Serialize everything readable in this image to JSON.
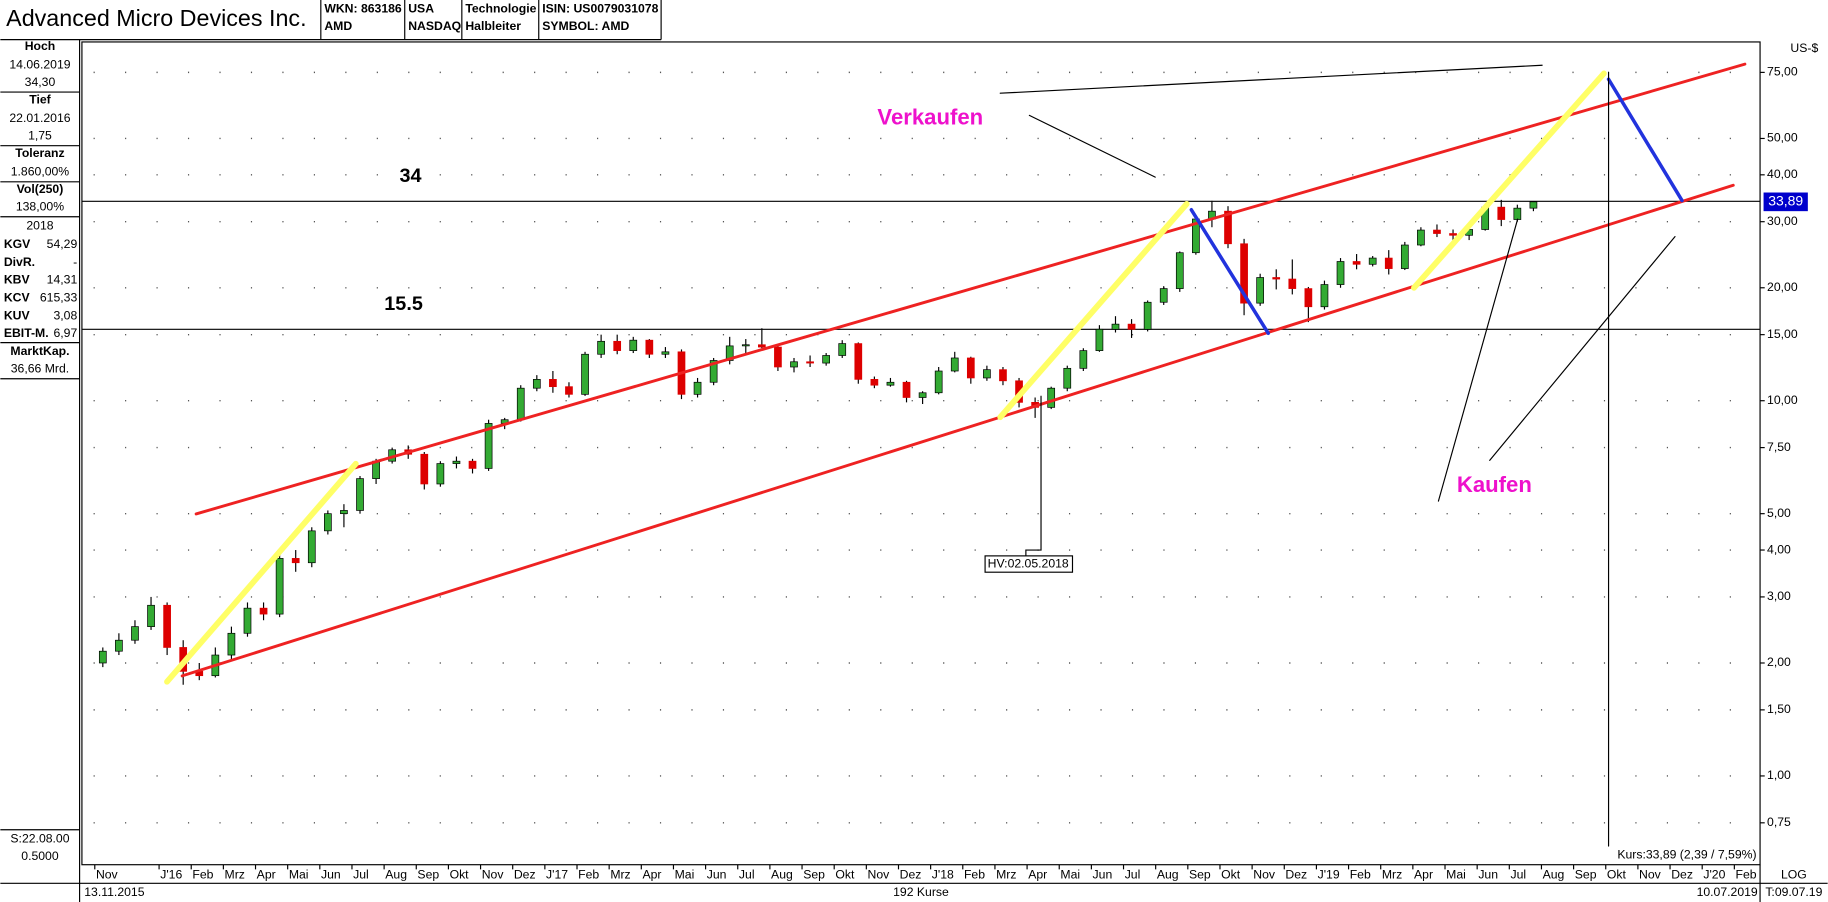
{
  "header": {
    "title": "Advanced Micro Devices Inc.",
    "fields": [
      [
        "WKN: 863186",
        "AMD"
      ],
      [
        "USA",
        "NASDAQ"
      ],
      [
        "Technologie",
        "Halbleiter"
      ],
      [
        "ISIN: US0079031078",
        "SYMBOL: AMD"
      ]
    ]
  },
  "sidebar": {
    "high_label": "Hoch",
    "high_date": "14.06.2019",
    "high_value": "34,30",
    "low_label": "Tief",
    "low_date": "22.01.2016",
    "low_value": "1,75",
    "tol_label": "Toleranz",
    "tol_value": "1.860,00%",
    "vol_label": "Vol(250)",
    "vol_value": "138,00%",
    "year": "2018",
    "ratios": [
      [
        "KGV",
        "54,29"
      ],
      [
        "DivR.",
        "-"
      ],
      [
        "KBV",
        "14,31"
      ],
      [
        "KCV",
        "615,33"
      ],
      [
        "KUV",
        "3,08"
      ],
      [
        "EBIT-M.",
        "6,97"
      ]
    ],
    "cap_label": "MarktKap.",
    "cap_value": "36,66 Mrd.",
    "split": "S:22.08.00",
    "factor": "0.5000"
  },
  "chart_data": {
    "type": "candlestick",
    "unit": "US-$",
    "log": true,
    "grid": true,
    "up_color": "#33aa33",
    "down_color": "#dd0000",
    "x": [
      0.25,
      0.75,
      1.25,
      1.75,
      2.25,
      2.75,
      3.25,
      3.75,
      4.25,
      4.75,
      5.25,
      5.75,
      6.25,
      6.75,
      7.25,
      7.75,
      8.25,
      8.75,
      9.25,
      9.75,
      10.25,
      10.75,
      11.25,
      11.75,
      12.25,
      12.75,
      13.25,
      13.75,
      14.25,
      14.75,
      15.25,
      15.75,
      16.25,
      16.75,
      17.25,
      17.75,
      18.25,
      18.75,
      19.25,
      19.75,
      20.25,
      20.75,
      21.25,
      21.75,
      22.25,
      22.75,
      23.25,
      23.75,
      24.25,
      24.75,
      25.25,
      25.75,
      26.25,
      26.75,
      27.25,
      27.75,
      28.25,
      28.75,
      29.25,
      29.75,
      30.25,
      30.75,
      31.25,
      31.75,
      32.25,
      32.75,
      33.25,
      33.75,
      34.25,
      34.75,
      35.25,
      35.75,
      36.25,
      36.75,
      37.25,
      37.75,
      38.25,
      38.75,
      39.25,
      39.75,
      40.25,
      40.75,
      41.25,
      41.75,
      42.25,
      42.75,
      43.25,
      43.75,
      44.25,
      44.75
    ],
    "open": [
      2.0,
      2.15,
      2.3,
      2.5,
      2.85,
      2.2,
      1.9,
      1.85,
      2.1,
      2.4,
      2.8,
      2.7,
      3.8,
      3.7,
      4.5,
      5.0,
      5.1,
      6.2,
      6.9,
      7.4,
      7.2,
      6.0,
      6.8,
      6.9,
      6.6,
      8.7,
      8.9,
      10.8,
      11.4,
      10.9,
      10.4,
      13.3,
      14.4,
      13.6,
      14.5,
      13.3,
      13.5,
      10.4,
      11.2,
      12.8,
      14.0,
      14.1,
      13.9,
      12.3,
      12.7,
      12.6,
      13.2,
      14.2,
      11.4,
      11.0,
      11.2,
      10.2,
      10.5,
      12.0,
      13.0,
      11.5,
      12.1,
      11.3,
      9.9,
      9.6,
      10.8,
      12.2,
      13.6,
      15.5,
      16.0,
      15.5,
      18.3,
      19.9,
      24.8,
      30.5,
      32.0,
      26.2,
      18.2,
      21.3,
      21.1,
      19.9,
      17.8,
      20.4,
      23.5,
      23.1,
      24.0,
      22.5,
      26.0,
      28.5,
      27.9,
      27.6,
      28.6,
      32.8,
      30.4,
      32.6
    ],
    "high": [
      2.2,
      2.4,
      2.6,
      3.0,
      2.9,
      2.3,
      2.0,
      2.2,
      2.5,
      2.9,
      2.9,
      3.9,
      4.0,
      4.6,
      5.1,
      5.3,
      6.3,
      7.0,
      7.5,
      7.6,
      7.3,
      6.9,
      7.1,
      7.0,
      8.9,
      9.0,
      11.0,
      11.7,
      12.0,
      11.2,
      13.5,
      15.0,
      15.0,
      14.8,
      14.6,
      13.9,
      13.7,
      11.5,
      13.0,
      14.8,
      14.6,
      15.6,
      14.0,
      13.0,
      13.2,
      13.4,
      14.5,
      14.3,
      11.6,
      11.5,
      11.3,
      10.6,
      12.3,
      13.5,
      13.1,
      12.4,
      12.3,
      11.5,
      10.2,
      10.9,
      12.4,
      13.8,
      15.9,
      16.8,
      16.5,
      18.5,
      20.2,
      25.0,
      31.0,
      34.1,
      33.0,
      27.0,
      21.8,
      22.4,
      23.8,
      20.1,
      20.9,
      24.0,
      24.6,
      24.3,
      25.2,
      26.5,
      29.0,
      29.5,
      28.6,
      29.2,
      33.0,
      34.3,
      33.3,
      34.0
    ],
    "low": [
      1.95,
      2.1,
      2.25,
      2.45,
      2.1,
      1.75,
      1.8,
      1.83,
      2.05,
      2.35,
      2.6,
      2.65,
      3.5,
      3.6,
      4.4,
      4.6,
      5.0,
      6.0,
      6.8,
      7.0,
      5.8,
      5.9,
      6.6,
      6.4,
      6.5,
      8.4,
      8.8,
      10.6,
      10.5,
      10.2,
      10.3,
      13.0,
      13.3,
      13.4,
      13.0,
      13.0,
      10.1,
      10.2,
      11.0,
      12.5,
      13.2,
      13.8,
      12.0,
      11.9,
      12.3,
      12.4,
      13.0,
      11.1,
      10.8,
      10.9,
      9.9,
      9.8,
      10.4,
      11.9,
      11.1,
      11.3,
      11.0,
      9.6,
      9.0,
      9.5,
      10.6,
      12.0,
      13.5,
      15.2,
      14.7,
      15.3,
      18.0,
      19.5,
      24.5,
      29.0,
      25.5,
      16.9,
      17.9,
      19.8,
      19.2,
      16.2,
      17.5,
      20.0,
      22.4,
      22.8,
      21.7,
      22.3,
      25.8,
      27.3,
      26.5,
      26.8,
      28.4,
      29.2,
      30.0,
      32.0
    ],
    "close": [
      2.15,
      2.3,
      2.5,
      2.85,
      2.2,
      1.9,
      1.85,
      2.1,
      2.4,
      2.8,
      2.7,
      3.8,
      3.7,
      4.5,
      5.0,
      5.1,
      6.2,
      6.9,
      7.4,
      7.2,
      6.0,
      6.8,
      6.9,
      6.6,
      8.7,
      8.9,
      10.8,
      11.4,
      10.9,
      10.4,
      13.3,
      14.4,
      13.6,
      14.5,
      13.3,
      13.5,
      10.4,
      11.2,
      12.8,
      14.0,
      14.1,
      13.9,
      12.3,
      12.7,
      12.6,
      13.2,
      14.2,
      11.4,
      11.0,
      11.2,
      10.2,
      10.5,
      12.0,
      13.0,
      11.5,
      12.1,
      11.3,
      9.9,
      9.6,
      10.8,
      12.2,
      13.6,
      15.5,
      16.0,
      15.5,
      18.3,
      19.9,
      24.8,
      30.5,
      32.0,
      26.2,
      18.2,
      21.3,
      21.1,
      19.9,
      17.8,
      20.4,
      23.5,
      23.1,
      24.0,
      22.5,
      26.0,
      28.5,
      27.9,
      27.6,
      28.6,
      32.8,
      30.4,
      32.6,
      33.89
    ],
    "xlim": [
      -0.4,
      51.8
    ],
    "xticks": [
      {
        "value": 0,
        "label": "Nov"
      },
      {
        "value": 2,
        "label": "J'16"
      },
      {
        "value": 3,
        "label": "Feb"
      },
      {
        "value": 4,
        "label": "Mrz"
      },
      {
        "value": 5,
        "label": "Apr"
      },
      {
        "value": 6,
        "label": "Mai"
      },
      {
        "value": 7,
        "label": "Jun"
      },
      {
        "value": 8,
        "label": "Jul"
      },
      {
        "value": 9,
        "label": "Aug"
      },
      {
        "value": 10,
        "label": "Sep"
      },
      {
        "value": 11,
        "label": "Okt"
      },
      {
        "value": 12,
        "label": "Nov"
      },
      {
        "value": 13,
        "label": "Dez"
      },
      {
        "value": 14,
        "label": "J'17"
      },
      {
        "value": 15,
        "label": "Feb"
      },
      {
        "value": 16,
        "label": "Mrz"
      },
      {
        "value": 17,
        "label": "Apr"
      },
      {
        "value": 18,
        "label": "Mai"
      },
      {
        "value": 19,
        "label": "Jun"
      },
      {
        "value": 20,
        "label": "Jul"
      },
      {
        "value": 21,
        "label": "Aug"
      },
      {
        "value": 22,
        "label": "Sep"
      },
      {
        "value": 23,
        "label": "Okt"
      },
      {
        "value": 24,
        "label": "Nov"
      },
      {
        "value": 25,
        "label": "Dez"
      },
      {
        "value": 26,
        "label": "J'18"
      },
      {
        "value": 27,
        "label": "Feb"
      },
      {
        "value": 28,
        "label": "Mrz"
      },
      {
        "value": 29,
        "label": "Apr"
      },
      {
        "value": 30,
        "label": "Mai"
      },
      {
        "value": 31,
        "label": "Jun"
      },
      {
        "value": 32,
        "label": "Jul"
      },
      {
        "value": 33,
        "label": "Aug"
      },
      {
        "value": 34,
        "label": "Sep"
      },
      {
        "value": 35,
        "label": "Okt"
      },
      {
        "value": 36,
        "label": "Nov"
      },
      {
        "value": 37,
        "label": "Dez"
      },
      {
        "value": 38,
        "label": "J'19"
      },
      {
        "value": 39,
        "label": "Feb"
      },
      {
        "value": 40,
        "label": "Mrz"
      },
      {
        "value": 41,
        "label": "Apr"
      },
      {
        "value": 42,
        "label": "Mai"
      },
      {
        "value": 43,
        "label": "Jun"
      },
      {
        "value": 44,
        "label": "Jul"
      },
      {
        "value": 45,
        "label": "Aug"
      },
      {
        "value": 46,
        "label": "Sep"
      },
      {
        "value": 47,
        "label": "Okt"
      },
      {
        "value": 48,
        "label": "Nov"
      },
      {
        "value": 49,
        "label": "Dez"
      },
      {
        "value": 50,
        "label": "J'20"
      },
      {
        "value": 51,
        "label": "Feb"
      }
    ],
    "ylim": [
      0.58,
      90.4
    ],
    "yticks": [
      {
        "value": 0.75,
        "label": "0,75"
      },
      {
        "value": 1,
        "label": "1,00"
      },
      {
        "value": 1.5,
        "label": "1,50"
      },
      {
        "value": 2,
        "label": "2,00"
      },
      {
        "value": 3,
        "label": "3,00"
      },
      {
        "value": 4,
        "label": "4,00"
      },
      {
        "value": 5,
        "label": "5,00"
      },
      {
        "value": 7.5,
        "label": "7,50"
      },
      {
        "value": 10,
        "label": "10,00"
      },
      {
        "value": 15,
        "label": "15,00"
      },
      {
        "value": 20,
        "label": "20,00"
      },
      {
        "value": 30,
        "label": "30,00"
      },
      {
        "value": 40,
        "label": "40,00"
      },
      {
        "value": 50,
        "label": "50,00"
      },
      {
        "value": 75,
        "label": "75,00"
      }
    ],
    "levels": [
      34,
      15.5
    ],
    "last_price": {
      "value": 33.89,
      "label": "33,89"
    },
    "sell_label": "Verkaufen",
    "buy_label": "Kaufen",
    "hv_label": "HV:02.05.2018",
    "price_note": "Kurs:33,89 (2,39 / 7,59%)",
    "scale_label": "LOG",
    "start_date": "13.11.2015",
    "end_date": "10.07.2019",
    "count_label": "192 Kurse",
    "time_label": "T:09.07.19"
  }
}
